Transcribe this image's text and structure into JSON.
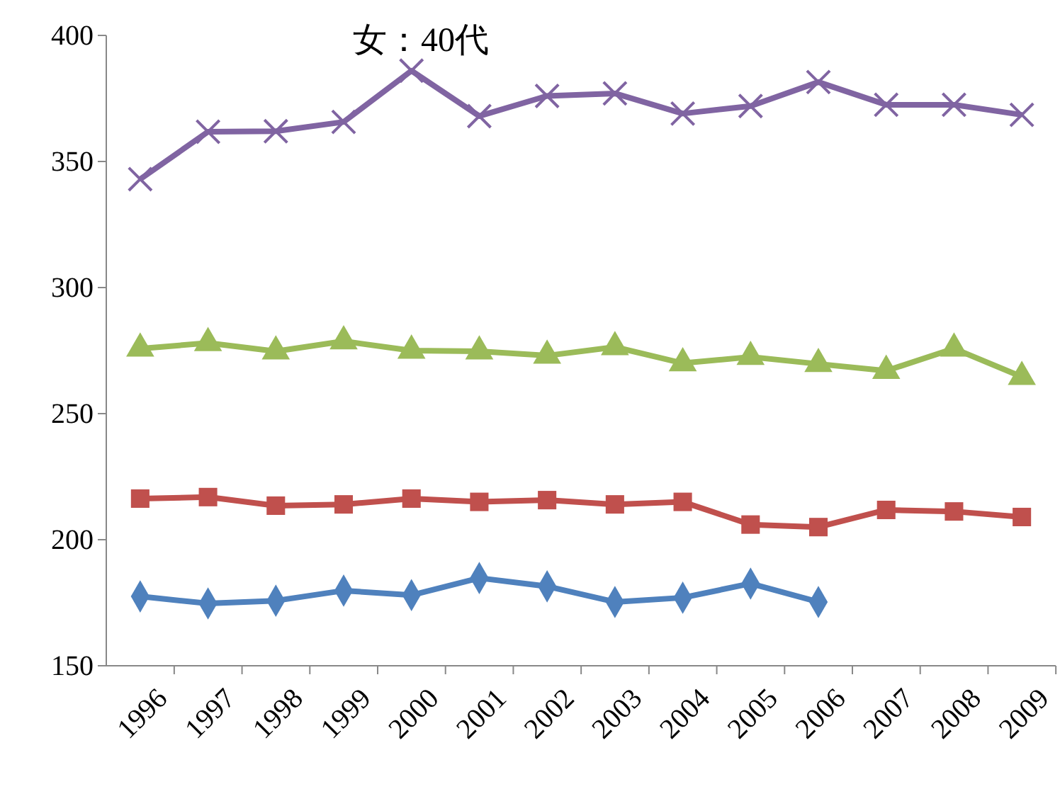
{
  "chart_data": {
    "type": "line",
    "title": "女：40代",
    "categories": [
      "1996",
      "1997",
      "1998",
      "1999",
      "2000",
      "2001",
      "2002",
      "2003",
      "2004",
      "2005",
      "2006",
      "2007",
      "2008",
      "2009"
    ],
    "series": [
      {
        "color": "#4f81bd",
        "marker": "diamond",
        "values": [
          177.5,
          174.7,
          175.8,
          179.8,
          178,
          184.8,
          181.5,
          175.3,
          177,
          182.6,
          175.3,
          null,
          null,
          null
        ]
      },
      {
        "color": "#c0504d",
        "marker": "square",
        "values": [
          216.3,
          216.9,
          213.5,
          214,
          216.3,
          215,
          215.7,
          214,
          215,
          206,
          205,
          211.8,
          211.2,
          209
        ]
      },
      {
        "color": "#9bbb59",
        "marker": "triangle",
        "values": [
          275.8,
          278,
          274.7,
          278.7,
          275,
          274.7,
          273,
          276.4,
          270,
          272.5,
          269.7,
          267,
          275.8,
          264.6
        ]
      },
      {
        "color": "#8064a2",
        "marker": "cross",
        "values": [
          343,
          361.8,
          362,
          365.7,
          386,
          368,
          376,
          377,
          369,
          372,
          381.5,
          372.5,
          372.5,
          368.5
        ]
      }
    ],
    "ylim": [
      150,
      400
    ],
    "yticks": [
      150,
      200,
      250,
      300,
      350,
      400
    ],
    "grid": false,
    "line_style": "solid"
  }
}
